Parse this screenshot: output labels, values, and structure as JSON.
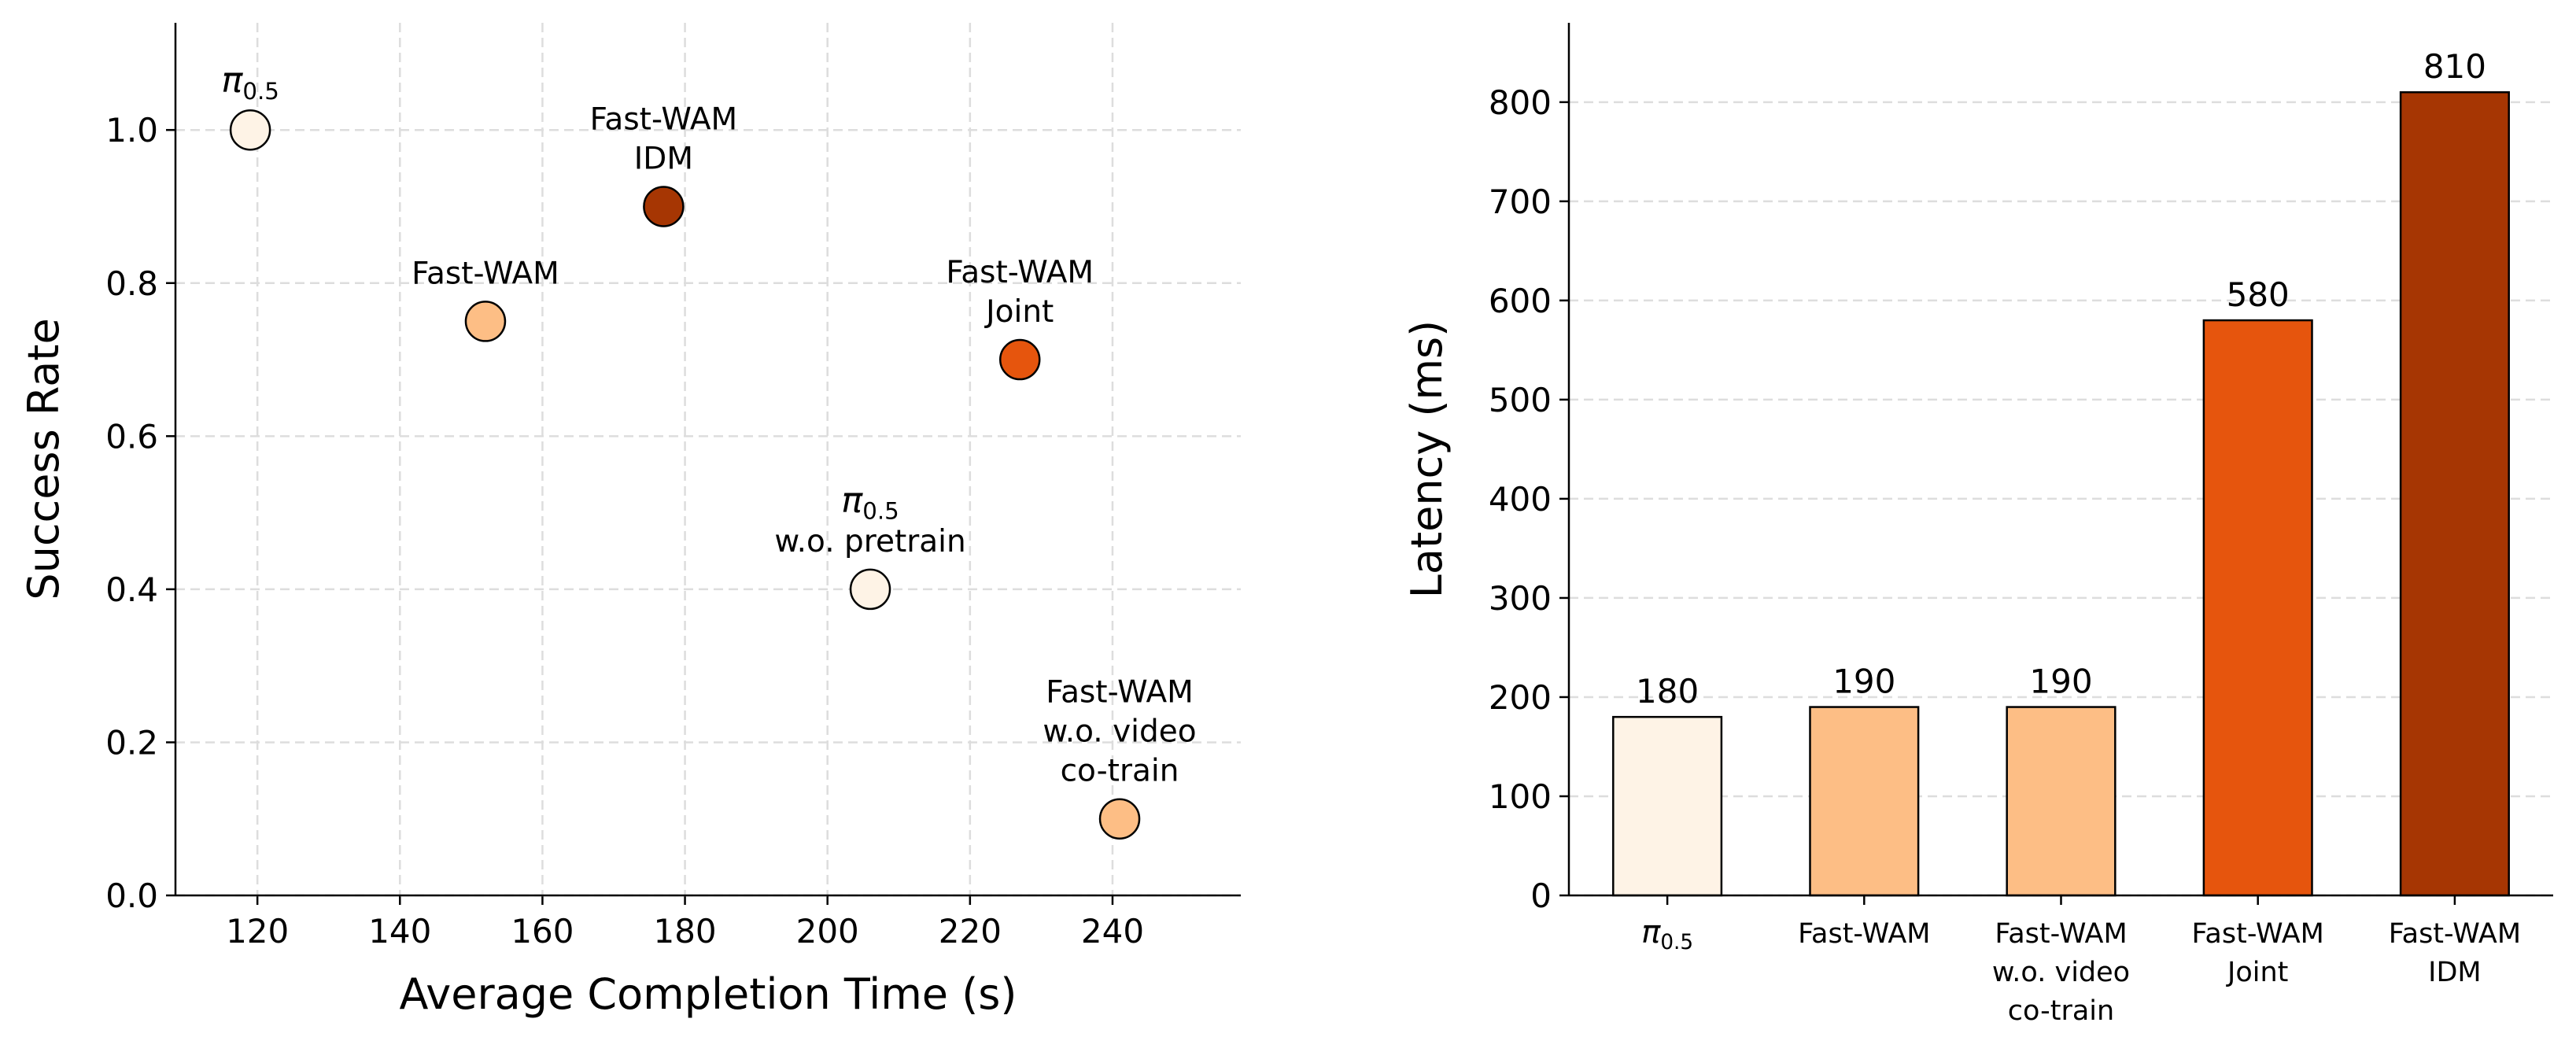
{
  "chart_data": [
    {
      "type": "scatter",
      "xlabel": "Average Completion Time (s)",
      "ylabel": "Success Rate",
      "x": [
        119,
        152,
        177,
        227,
        206,
        241
      ],
      "values": [
        1.0,
        0.75,
        0.9,
        0.7,
        0.4,
        0.1
      ],
      "colors": [
        "#fef3e6",
        "#fdbe85",
        "#a63603",
        "#e6550d",
        "#fef3e6",
        "#fdbe85"
      ],
      "labels": [
        [
          "π0.5"
        ],
        [
          "Fast-WAM"
        ],
        [
          "Fast-WAM",
          "IDM"
        ],
        [
          "Fast-WAM",
          "Joint"
        ],
        [
          "π0.5",
          "w.o. pretrain"
        ],
        [
          "Fast-WAM",
          "w.o. video",
          "co-train"
        ]
      ],
      "xlim": [
        108.5,
        258
      ],
      "xticks": [
        120,
        140,
        160,
        180,
        200,
        220,
        240
      ],
      "ylim": [
        0,
        1.14
      ],
      "yticks": [
        {
          "value": 0,
          "label": "0.0"
        },
        0.2,
        0.4,
        0.6,
        0.8,
        {
          "value": 1,
          "label": "1.0"
        }
      ],
      "grid": true
    },
    {
      "type": "bar",
      "ylabel": "Latency (ms)",
      "categories": [
        [
          "π0.5"
        ],
        [
          "Fast-WAM"
        ],
        [
          "Fast-WAM",
          "w.o. video",
          "co-train"
        ],
        [
          "Fast-WAM",
          "Joint"
        ],
        [
          "Fast-WAM",
          "IDM"
        ]
      ],
      "values": [
        180,
        190,
        190,
        580,
        810
      ],
      "colors": [
        "#fef3e6",
        "#fdbe85",
        "#fdbe85",
        "#e6550d",
        "#a63603"
      ],
      "ylim": [
        0,
        880
      ],
      "yticks": [
        0,
        100,
        200,
        300,
        400,
        500,
        600,
        700,
        800
      ],
      "grid": true
    }
  ]
}
